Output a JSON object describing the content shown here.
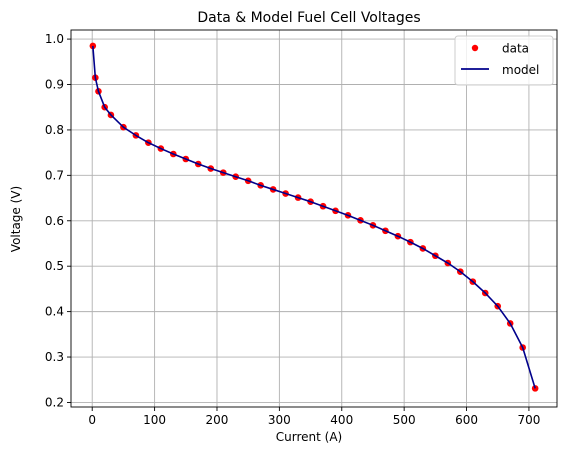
{
  "chart_data": {
    "type": "line",
    "title": "Data & Model Fuel Cell Voltages",
    "xlabel": "Current (A)",
    "ylabel": "Voltage (V)",
    "xlim": [
      -34,
      745
    ],
    "ylim": [
      0.19,
      1.02
    ],
    "xticks": [
      0,
      100,
      200,
      300,
      400,
      500,
      600,
      700
    ],
    "yticks": [
      0.2,
      0.3,
      0.4,
      0.5,
      0.6,
      0.7,
      0.8,
      0.9,
      1.0
    ],
    "xtick_labels": [
      "0",
      "100",
      "200",
      "300",
      "400",
      "500",
      "600",
      "700"
    ],
    "ytick_labels": [
      "0.2",
      "0.3",
      "0.4",
      "0.5",
      "0.6",
      "0.7",
      "0.8",
      "0.9",
      "1.0"
    ],
    "grid": true,
    "legend_position": "top-right",
    "series": [
      {
        "name": "data",
        "kind": "scatter",
        "color": "#ff0000",
        "x": [
          1,
          5,
          10,
          20,
          30,
          50,
          70,
          90,
          110,
          130,
          150,
          170,
          190,
          210,
          230,
          250,
          270,
          290,
          310,
          330,
          350,
          370,
          390,
          410,
          430,
          450,
          470,
          490,
          510,
          530,
          550,
          570,
          590,
          610,
          630,
          650,
          670,
          690,
          710
        ],
        "y": [
          0.985,
          0.915,
          0.885,
          0.85,
          0.833,
          0.806,
          0.788,
          0.772,
          0.759,
          0.747,
          0.736,
          0.725,
          0.715,
          0.706,
          0.697,
          0.688,
          0.678,
          0.669,
          0.66,
          0.651,
          0.642,
          0.632,
          0.622,
          0.612,
          0.601,
          0.59,
          0.578,
          0.566,
          0.553,
          0.539,
          0.523,
          0.507,
          0.488,
          0.466,
          0.441,
          0.412,
          0.374,
          0.321,
          0.231
        ]
      },
      {
        "name": "model",
        "kind": "line",
        "color": "#00008b",
        "x": [
          1,
          5,
          10,
          20,
          30,
          50,
          70,
          90,
          110,
          130,
          150,
          170,
          190,
          210,
          230,
          250,
          270,
          290,
          310,
          330,
          350,
          370,
          390,
          410,
          430,
          450,
          470,
          490,
          510,
          530,
          550,
          570,
          590,
          610,
          630,
          650,
          670,
          690,
          710
        ],
        "y": [
          0.985,
          0.915,
          0.885,
          0.85,
          0.833,
          0.806,
          0.788,
          0.772,
          0.759,
          0.747,
          0.736,
          0.725,
          0.715,
          0.706,
          0.697,
          0.688,
          0.678,
          0.669,
          0.66,
          0.651,
          0.642,
          0.632,
          0.622,
          0.612,
          0.601,
          0.59,
          0.578,
          0.566,
          0.553,
          0.539,
          0.523,
          0.507,
          0.488,
          0.466,
          0.441,
          0.412,
          0.374,
          0.321,
          0.231
        ]
      }
    ]
  }
}
